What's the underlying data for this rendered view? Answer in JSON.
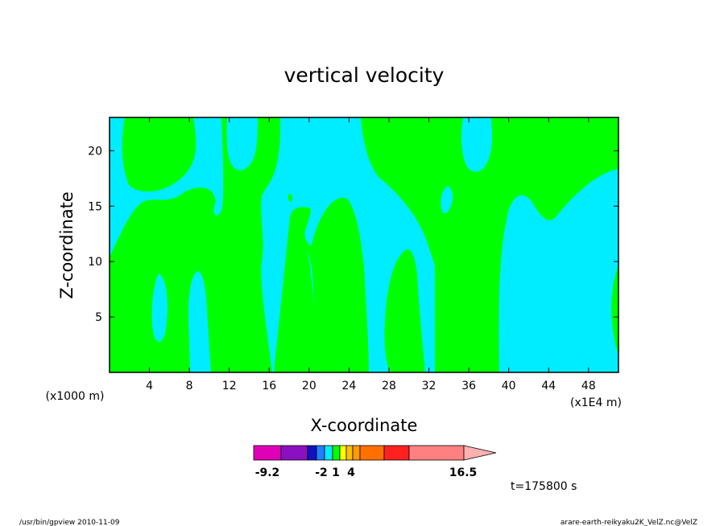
{
  "chart_data": {
    "type": "heatmap",
    "title": "vertical velocity",
    "xlabel": "X-coordinate",
    "ylabel": "Z-coordinate",
    "x_unit_left": "(x1000 m)",
    "x_unit_right": "(x1E4 m)",
    "xlim": [
      0,
      51
    ],
    "ylim": [
      0,
      23
    ],
    "xticks": [
      4,
      8,
      12,
      16,
      20,
      24,
      28,
      32,
      36,
      40,
      44,
      48
    ],
    "yticks": [
      5,
      10,
      15,
      20
    ],
    "grid": false,
    "field_colors": {
      "positive": "#00ff00",
      "negative": "#00ecff"
    },
    "colorbar": {
      "tick_labels": [
        {
          "label": "-9.2",
          "value": -9.2
        },
        {
          "label": "-2",
          "value": -2
        },
        {
          "label": "1",
          "value": 1
        },
        {
          "label": "4",
          "value": 4
        },
        {
          "label": "16.5",
          "value": 16.5
        }
      ],
      "colors": [
        "#e000b8",
        "#8a10c0",
        "#1010c0",
        "#2080ff",
        "#00ecff",
        "#00ff00",
        "#ffff00",
        "#ffc000",
        "#ff9a00",
        "#ff7000",
        "#ff2020",
        "#ff8080"
      ],
      "extend": "max"
    },
    "time_label": "t=175800  s"
  },
  "footer": {
    "left": "/usr/bin/gpview   2010-11-09",
    "right": "arare-earth-reikyaku2K_VelZ.nc@VelZ"
  }
}
